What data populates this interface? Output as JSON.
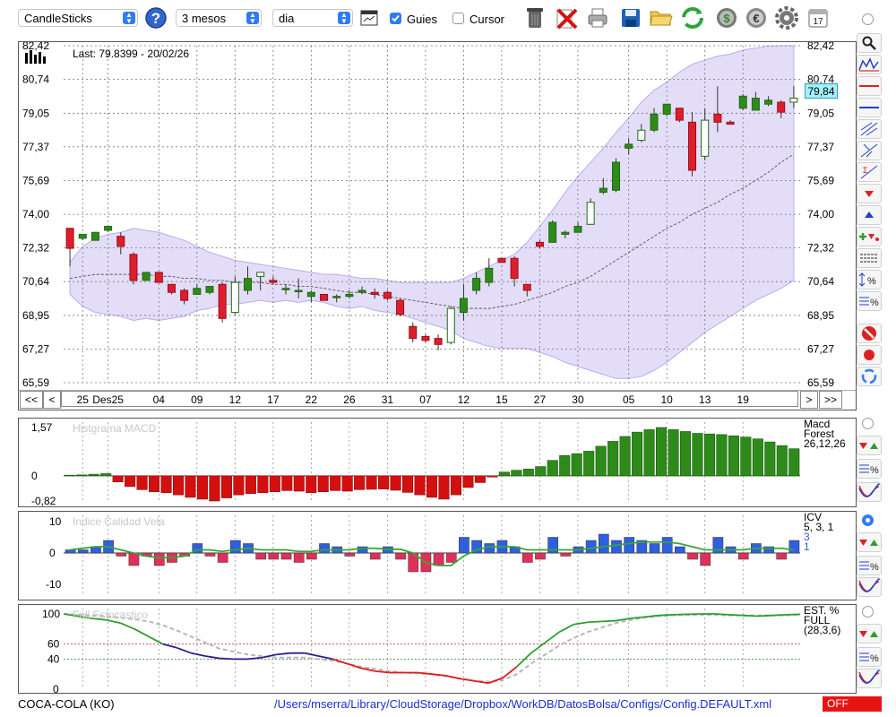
{
  "toolbar": {
    "chart_type": "CandleSticks",
    "period": "3 mesos",
    "interval": "dia",
    "guides_label": "Guies",
    "guides_checked": true,
    "cursor_label": "Cursor",
    "cursor_checked": false,
    "calendar_day": "17"
  },
  "main_chart": {
    "last_label": "Last: 79.8399 - 20/02/26",
    "price_badge": "79,84",
    "price_ticks": [
      "82,42",
      "80,74",
      "79,05",
      "77,37",
      "75,69",
      "74,00",
      "72,32",
      "70,64",
      "68,95",
      "67,27",
      "65,59"
    ],
    "date_ticks": [
      "25",
      "Des25",
      "04",
      "09",
      "12",
      "17",
      "22",
      "26",
      "31",
      "07",
      "12",
      "15",
      "27",
      "30",
      "05",
      "10",
      "13",
      "19"
    ],
    "nav": {
      "first": "<<",
      "prev": "<",
      "next": ">",
      "last": ">>"
    }
  },
  "macd": {
    "title": "Histgrama MACD",
    "legend": [
      "Macd",
      "Forest",
      "26,12,26"
    ],
    "ticks": [
      "1,57",
      "0",
      "-0,82"
    ],
    "values": [
      0.02,
      0.03,
      0.05,
      0.07,
      -0.2,
      -0.35,
      -0.45,
      -0.52,
      -0.55,
      -0.62,
      -0.7,
      -0.76,
      -0.82,
      -0.72,
      -0.62,
      -0.58,
      -0.55,
      -0.52,
      -0.48,
      -0.5,
      -0.55,
      -0.52,
      -0.48,
      -0.5,
      -0.45,
      -0.44,
      -0.43,
      -0.47,
      -0.54,
      -0.62,
      -0.7,
      -0.76,
      -0.62,
      -0.38,
      -0.22,
      -0.04,
      0.12,
      0.18,
      0.22,
      0.3,
      0.5,
      0.66,
      0.72,
      0.8,
      0.96,
      1.12,
      1.28,
      1.42,
      1.5,
      1.57,
      1.5,
      1.44,
      1.38,
      1.36,
      1.34,
      1.3,
      1.26,
      1.2,
      1.1,
      0.98,
      0.88
    ]
  },
  "icv": {
    "title": "Indice Calidad Vela",
    "legend": [
      "ICV",
      "5, 3, 1",
      "3",
      "1"
    ],
    "ticks": [
      "10",
      "0",
      "-10"
    ],
    "bars": [
      1,
      1,
      2,
      4,
      -1,
      -4,
      -1,
      -4,
      -3,
      -1,
      3,
      -1,
      -3,
      4,
      3,
      -2,
      -2,
      -2,
      -3,
      -2,
      3,
      2,
      -1,
      2,
      -2,
      2,
      -2,
      -6,
      -6,
      -4,
      -3,
      5,
      4,
      3,
      4,
      2,
      -3,
      -2,
      5,
      -1,
      2,
      4,
      6,
      4,
      5,
      4,
      3,
      5,
      2,
      -2,
      -4,
      5,
      2,
      -2,
      3,
      2,
      -2,
      4
    ],
    "line": [
      1,
      1.5,
      2,
      2,
      1,
      0,
      -1,
      -1.5,
      -1.5,
      -1,
      1,
      1,
      0.5,
      1,
      1.5,
      1,
      1,
      1,
      0.5,
      0.5,
      1,
      1,
      1,
      1.5,
      1.5,
      1.2,
      1.2,
      0,
      -3,
      -4,
      -4,
      -1,
      1,
      2,
      2,
      2,
      1,
      1,
      1,
      1,
      1,
      1.5,
      2,
      2.5,
      3,
      3.5,
      3.5,
      3.5,
      3,
      2,
      1,
      1,
      1,
      1,
      1.5,
      1.5,
      1.5,
      1
    ]
  },
  "stoch": {
    "title": "Full Estocastico",
    "legend": [
      "EST. %",
      "FULL",
      "(28,3,6)"
    ],
    "ticks": [
      "100",
      "60",
      "40",
      "0"
    ],
    "main": [
      100,
      97,
      94,
      92,
      88,
      80,
      70,
      60,
      55,
      48,
      44,
      41,
      40,
      40,
      42,
      46,
      48,
      48,
      44,
      40,
      34,
      28,
      24,
      22,
      22,
      22,
      20,
      18,
      14,
      11,
      8,
      15,
      30,
      48,
      62,
      76,
      86,
      89,
      90,
      91,
      94,
      96,
      98,
      99,
      99.5,
      100,
      100,
      99,
      98,
      97,
      98,
      99,
      99.5
    ],
    "signal": [
      100,
      99,
      98,
      97,
      95,
      93,
      90,
      85,
      78,
      70,
      62,
      54,
      50,
      46,
      44,
      42,
      42,
      42,
      40,
      38,
      34,
      30,
      27,
      24,
      22,
      21,
      20,
      17,
      14,
      11,
      10,
      12,
      20,
      34,
      46,
      58,
      68,
      76,
      82,
      88,
      92,
      95,
      97,
      98,
      99,
      99,
      99,
      98,
      98,
      98,
      98,
      98,
      99
    ]
  },
  "status": {
    "symbol": "COCA-COLA (KO)",
    "path": "/Users/mserra/Library/CloudStorage/Dropbox/WorkDB/DatosBolsa/Configs/Config.DEFAULT.xml",
    "off": "OFF"
  },
  "colors": {
    "up": "#2e8b1a",
    "down": "#dd1e2c",
    "band": "#d9d2f5",
    "macd_down": "#d40f0f",
    "icv_pos": "#2f5fe0",
    "icv_neg": "#e0305a",
    "accent": "#2f7cf6",
    "badge": "#9ff2ff"
  },
  "chart_data": {
    "type": "candlestick",
    "ylim": [
      65.59,
      82.42
    ],
    "candles": [
      [
        73.3,
        72.3,
        73.3,
        71.4
      ],
      [
        72.8,
        73.0,
        72.6,
        72.7
      ],
      [
        72.7,
        73.1,
        72.5,
        72.8
      ],
      [
        73.2,
        73.4,
        72.9,
        73.1
      ],
      [
        72.9,
        72.4,
        73.1,
        72.0
      ],
      [
        72.0,
        70.7,
        72.1,
        70.5
      ],
      [
        70.7,
        71.1,
        70.6,
        71.3
      ],
      [
        71.1,
        70.6,
        70.4,
        71.3
      ],
      [
        70.5,
        70.1,
        70.3,
        70.0
      ],
      [
        70.2,
        69.7,
        70.3,
        69.5
      ],
      [
        70.0,
        70.3,
        70.5,
        70.1
      ],
      [
        70.1,
        70.4,
        70.3,
        70.0
      ],
      [
        70.5,
        68.8,
        70.6,
        68.6
      ],
      [
        69.1,
        70.6,
        70.9,
        69.0
      ],
      [
        70.2,
        70.8,
        71.4,
        70.0
      ],
      [
        70.9,
        71.1,
        70.3,
        70.2
      ],
      [
        70.7,
        70.6,
        70.9,
        70.5
      ],
      [
        70.3,
        70.3,
        70.5,
        70.0
      ],
      [
        70.2,
        70.2,
        70.8,
        69.8
      ],
      [
        69.9,
        70.1,
        70.2,
        69.6
      ],
      [
        70.0,
        69.7,
        69.4,
        70.1
      ],
      [
        69.9,
        69.9,
        70.0,
        69.6
      ],
      [
        69.9,
        70.0,
        70.2,
        69.8
      ],
      [
        70.1,
        70.2,
        70.4,
        70.0
      ],
      [
        70.1,
        70.0,
        70.3,
        69.8
      ],
      [
        70.1,
        69.8,
        70.2,
        69.7
      ],
      [
        69.7,
        69.0,
        69.8,
        68.9
      ],
      [
        68.4,
        67.8,
        68.6,
        67.6
      ],
      [
        67.9,
        67.7,
        68.0,
        67.6
      ],
      [
        67.8,
        67.5,
        68.0,
        67.2
      ],
      [
        67.6,
        69.3,
        69.4,
        67.5
      ],
      [
        69.1,
        69.8,
        70.5,
        68.7
      ],
      [
        70.2,
        70.8,
        71.1,
        70.0
      ],
      [
        70.6,
        71.3,
        71.8,
        70.4
      ],
      [
        71.8,
        71.6,
        71.8,
        71.6
      ],
      [
        71.8,
        70.8,
        71.9,
        70.4
      ],
      [
        70.5,
        70.2,
        70.3,
        69.9
      ],
      [
        72.6,
        72.4,
        72.7,
        72.3
      ],
      [
        72.6,
        73.6,
        73.7,
        72.6
      ],
      [
        73.0,
        73.1,
        73.2,
        72.8
      ],
      [
        73.1,
        73.4,
        73.6,
        73.1
      ],
      [
        73.5,
        74.6,
        74.8,
        73.5
      ],
      [
        75.1,
        75.3,
        75.8,
        75.0
      ],
      [
        75.2,
        76.6,
        76.8,
        75.1
      ],
      [
        77.3,
        77.5,
        77.8,
        77.0
      ],
      [
        77.7,
        78.2,
        78.5,
        77.6
      ],
      [
        78.2,
        79.0,
        79.3,
        78.1
      ],
      [
        79.0,
        79.5,
        79.5,
        78.9
      ],
      [
        79.3,
        78.7,
        78.8,
        78.6
      ],
      [
        78.6,
        76.2,
        79.1,
        75.9
      ],
      [
        76.9,
        78.7,
        79.3,
        76.7
      ],
      [
        79.0,
        78.6,
        80.4,
        78.1
      ],
      [
        78.6,
        78.5,
        78.7,
        78.5
      ],
      [
        79.3,
        79.9,
        80.0,
        79.2
      ],
      [
        79.2,
        79.8,
        80.1,
        79.4
      ],
      [
        79.5,
        79.7,
        79.9,
        79.4
      ],
      [
        79.6,
        79.1,
        79.7,
        78.8
      ],
      [
        79.6,
        79.8,
        80.4,
        79.3
      ]
    ],
    "ma": [
      70.8,
      70.9,
      71.0,
      71.0,
      71.0,
      71.0,
      71.0,
      70.9,
      70.9,
      70.8,
      70.8,
      70.7,
      70.7,
      70.6,
      70.6,
      70.6,
      70.5,
      70.5,
      70.4,
      70.4,
      70.3,
      70.2,
      70.1,
      70.1,
      70.0,
      69.9,
      69.8,
      69.7,
      69.6,
      69.5,
      69.4,
      69.3,
      69.3,
      69.3,
      69.4,
      69.5,
      69.7,
      69.9,
      70.1,
      70.4,
      70.6,
      70.9,
      71.3,
      71.7,
      72.1,
      72.5,
      72.9,
      73.3,
      73.6,
      74.0,
      74.3,
      74.6,
      75.0,
      75.3,
      75.7,
      76.1,
      76.6,
      77.0
    ],
    "band_upper": [
      71.6,
      72.4,
      72.8,
      73.0,
      73.1,
      73.3,
      73.2,
      73.1,
      72.9,
      72.7,
      72.4,
      72.1,
      71.9,
      71.7,
      71.6,
      71.5,
      71.4,
      71.3,
      71.2,
      71.1,
      71.0,
      71.0,
      70.9,
      70.8,
      70.8,
      70.7,
      70.6,
      70.6,
      70.6,
      70.6,
      70.6,
      70.8,
      71.1,
      71.4,
      71.7,
      72.0,
      72.6,
      73.4,
      74.2,
      75.1,
      75.9,
      76.6,
      77.3,
      78.1,
      78.8,
      79.6,
      80.2,
      80.6,
      81.1,
      81.5,
      81.7,
      81.9,
      82.0,
      82.2,
      82.3,
      82.4,
      82.42,
      82.42
    ],
    "band_lower": [
      70.0,
      69.4,
      69.1,
      69.0,
      68.9,
      68.7,
      68.8,
      68.7,
      68.8,
      68.9,
      69.2,
      69.3,
      69.5,
      69.5,
      69.6,
      69.7,
      69.6,
      69.7,
      69.6,
      69.7,
      69.6,
      69.4,
      69.3,
      69.4,
      69.2,
      69.1,
      69.0,
      68.8,
      68.6,
      68.4,
      68.2,
      67.8,
      67.6,
      67.4,
      67.3,
      67.3,
      67.3,
      67.1,
      66.9,
      66.6,
      66.4,
      66.2,
      66.0,
      65.8,
      65.8,
      65.9,
      66.2,
      66.6,
      67.1,
      67.6,
      68.1,
      68.5,
      68.9,
      69.3,
      69.7,
      70.0,
      70.3,
      70.7
    ]
  }
}
